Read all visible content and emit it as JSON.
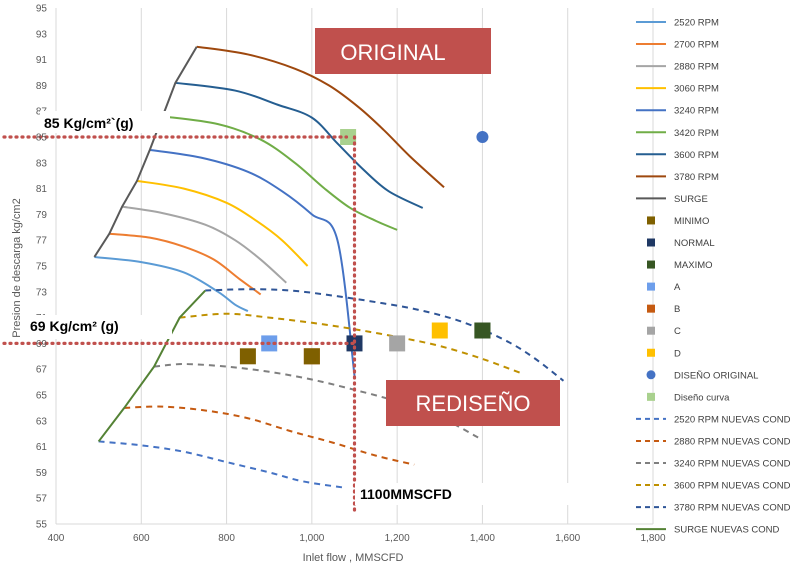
{
  "chart_data": {
    "type": "scatter",
    "xlabel": "Inlet flow , MMSCFD",
    "ylabel": "Presion de descarga kg/cm2",
    "xlim": [
      400,
      1800
    ],
    "ylim": [
      55,
      95
    ],
    "xticks": [
      "400",
      "600",
      "800",
      "1,000",
      "1,200",
      "1,400",
      "1,600",
      "1,800"
    ],
    "yticks": [
      "55",
      "57",
      "59",
      "61",
      "63",
      "65",
      "67",
      "69",
      "71",
      "73",
      "75",
      "77",
      "79",
      "81",
      "83",
      "85",
      "87",
      "89",
      "91",
      "93",
      "95"
    ],
    "grid": "vertical",
    "legend_position": "right",
    "series": [
      {
        "name": "2520 RPM",
        "kind": "line",
        "color": "#5b9bd5",
        "dash": false,
        "points": [
          [
            490,
            75.7
          ],
          [
            600,
            75.3
          ],
          [
            700,
            74.5
          ],
          [
            780,
            73
          ],
          [
            820,
            72
          ],
          [
            850,
            71.5
          ]
        ]
      },
      {
        "name": "2700 RPM",
        "kind": "line",
        "color": "#ed7d31",
        "dash": false,
        "points": [
          [
            525,
            77.5
          ],
          [
            620,
            77.2
          ],
          [
            700,
            76.5
          ],
          [
            770,
            75.5
          ],
          [
            830,
            74
          ],
          [
            880,
            72.8
          ]
        ]
      },
      {
        "name": "2880 RPM",
        "kind": "line",
        "color": "#a5a5a5",
        "dash": false,
        "points": [
          [
            555,
            79.6
          ],
          [
            650,
            79.1
          ],
          [
            750,
            78.2
          ],
          [
            820,
            77
          ],
          [
            880,
            75.5
          ],
          [
            940,
            73.7
          ]
        ]
      },
      {
        "name": "3060 RPM",
        "kind": "line",
        "color": "#ffc000",
        "dash": false,
        "points": [
          [
            590,
            81.6
          ],
          [
            700,
            81
          ],
          [
            800,
            79.9
          ],
          [
            870,
            78.5
          ],
          [
            930,
            77
          ],
          [
            990,
            75
          ]
        ]
      },
      {
        "name": "3240 RPM",
        "kind": "line",
        "color": "#4472c4",
        "dash": false,
        "points": [
          [
            620,
            84
          ],
          [
            740,
            83.4
          ],
          [
            850,
            82.3
          ],
          [
            930,
            80.8
          ],
          [
            1000,
            79
          ],
          [
            1060,
            77
          ],
          [
            1100,
            66.5
          ]
        ]
      },
      {
        "name": "3420 RPM",
        "kind": "line",
        "color": "#70ad47",
        "dash": false,
        "points": [
          [
            650,
            86.6
          ],
          [
            780,
            86
          ],
          [
            880,
            84.8
          ],
          [
            960,
            83
          ],
          [
            1030,
            81
          ],
          [
            1090,
            79.5
          ],
          [
            1150,
            78.5
          ],
          [
            1200,
            77.8
          ]
        ]
      },
      {
        "name": "3600 RPM",
        "kind": "line",
        "color": "#255e91",
        "dash": false,
        "points": [
          [
            680,
            89.2
          ],
          [
            820,
            88.6
          ],
          [
            920,
            87.5
          ],
          [
            1000,
            86.5
          ],
          [
            1060,
            84.5
          ],
          [
            1120,
            82.5
          ],
          [
            1180,
            80.8
          ],
          [
            1260,
            79.5
          ]
        ]
      },
      {
        "name": "3780 RPM",
        "kind": "line",
        "color": "#9e480e",
        "dash": false,
        "points": [
          [
            730,
            92
          ],
          [
            850,
            91.4
          ],
          [
            960,
            90.3
          ],
          [
            1040,
            89
          ],
          [
            1110,
            87.3
          ],
          [
            1170,
            85.5
          ],
          [
            1230,
            83.5
          ],
          [
            1310,
            81.1
          ]
        ]
      },
      {
        "name": "SURGE",
        "kind": "line",
        "color": "#595959",
        "dash": false,
        "points": [
          [
            490,
            75.7
          ],
          [
            525,
            77.5
          ],
          [
            555,
            79.6
          ],
          [
            590,
            81.6
          ],
          [
            620,
            84
          ],
          [
            650,
            86.6
          ],
          [
            680,
            89.2
          ],
          [
            730,
            92
          ]
        ]
      },
      {
        "name": "MINIMO",
        "kind": "marker",
        "color": "#7f6000",
        "points": []
      },
      {
        "name": "NORMAL",
        "kind": "marker",
        "color": "#1f3864",
        "points": [
          [
            1100,
            69
          ]
        ]
      },
      {
        "name": "MAXIMO",
        "kind": "marker",
        "color": "#375623",
        "points": [
          [
            1400,
            70
          ]
        ]
      },
      {
        "name": "A",
        "kind": "marker",
        "color": "#6d9eeb",
        "points": [
          [
            900,
            69
          ]
        ]
      },
      {
        "name": "B",
        "kind": "marker",
        "color": "#c55a11",
        "points": [
          [
            1000,
            68
          ]
        ]
      },
      {
        "name": "C",
        "kind": "marker",
        "color": "#a5a5a5",
        "points": [
          [
            1200,
            69
          ]
        ]
      },
      {
        "name": "D",
        "kind": "marker",
        "color": "#ffc000",
        "points": [
          [
            1300,
            70
          ]
        ]
      },
      {
        "name": "DISEÑO ORIGINAL",
        "kind": "circle",
        "color": "#4472c4",
        "points": [
          [
            1400,
            85
          ]
        ]
      },
      {
        "name": "Diseño curva",
        "kind": "marker",
        "color": "#a9d18e",
        "points": [
          [
            1085,
            85
          ]
        ]
      },
      {
        "name": "2520 RPM NUEVAS COND",
        "kind": "line",
        "color": "#4472c4",
        "dash": true,
        "points": [
          [
            500,
            61.4
          ],
          [
            600,
            61.1
          ],
          [
            700,
            60.6
          ],
          [
            800,
            59.8
          ],
          [
            900,
            59
          ],
          [
            980,
            58.3
          ],
          [
            1080,
            57.8
          ]
        ]
      },
      {
        "name": "2880 RPM NUEVAS COND",
        "kind": "line",
        "color": "#c55a11",
        "dash": true,
        "points": [
          [
            560,
            64
          ],
          [
            650,
            64.1
          ],
          [
            750,
            63.8
          ],
          [
            850,
            63.2
          ],
          [
            950,
            62.2
          ],
          [
            1050,
            61.3
          ],
          [
            1150,
            60.3
          ],
          [
            1240,
            59.6
          ]
        ]
      },
      {
        "name": "3240 RPM NUEVAS COND",
        "kind": "line",
        "color": "#7f7f7f",
        "dash": true,
        "points": [
          [
            630,
            67.2
          ],
          [
            700,
            67.4
          ],
          [
            800,
            67.2
          ],
          [
            900,
            66.8
          ],
          [
            1000,
            66.2
          ],
          [
            1100,
            65.4
          ],
          [
            1200,
            64.5
          ],
          [
            1300,
            63.3
          ],
          [
            1390,
            61.7
          ]
        ]
      },
      {
        "name": "3600 RPM NUEVAS COND",
        "kind": "line",
        "color": "#bf9000",
        "dash": true,
        "points": [
          [
            690,
            71
          ],
          [
            800,
            71.3
          ],
          [
            900,
            71
          ],
          [
            1000,
            70.6
          ],
          [
            1100,
            70.1
          ],
          [
            1200,
            69.5
          ],
          [
            1300,
            68.8
          ],
          [
            1400,
            67.8
          ],
          [
            1490,
            66.7
          ]
        ]
      },
      {
        "name": "3780 RPM NUEVAS COND",
        "kind": "line",
        "color": "#2f5597",
        "dash": true,
        "points": [
          [
            750,
            73.1
          ],
          [
            850,
            73.2
          ],
          [
            950,
            73.1
          ],
          [
            1050,
            72.7
          ],
          [
            1150,
            72.2
          ],
          [
            1250,
            71.6
          ],
          [
            1350,
            70.7
          ],
          [
            1450,
            69.3
          ],
          [
            1520,
            67.9
          ],
          [
            1590,
            66.1
          ]
        ]
      },
      {
        "name": "SURGE NUEVAS COND",
        "kind": "line",
        "color": "#548235",
        "dash": false,
        "points": [
          [
            500,
            61.4
          ],
          [
            560,
            64
          ],
          [
            630,
            67.2
          ],
          [
            690,
            71
          ],
          [
            750,
            73.1
          ]
        ]
      }
    ],
    "extra_markers": [
      {
        "color": "#7f6000",
        "points": [
          [
            850,
            68
          ],
          [
            1000,
            68
          ]
        ]
      },
      {
        "color": "#375623",
        "points": [
          [
            1400,
            70
          ]
        ]
      }
    ],
    "reference_lines": {
      "y_original": 85,
      "y_redesign": 69,
      "x_flow": 1100
    },
    "annotations": {
      "original_banner": "ORIGINAL",
      "redesign_banner": "REDISEÑO",
      "label_85": "85 Kg/cm²`(g)",
      "label_69": "69 Kg/cm² (g)",
      "label_flow": "1100MMSCFD"
    }
  }
}
